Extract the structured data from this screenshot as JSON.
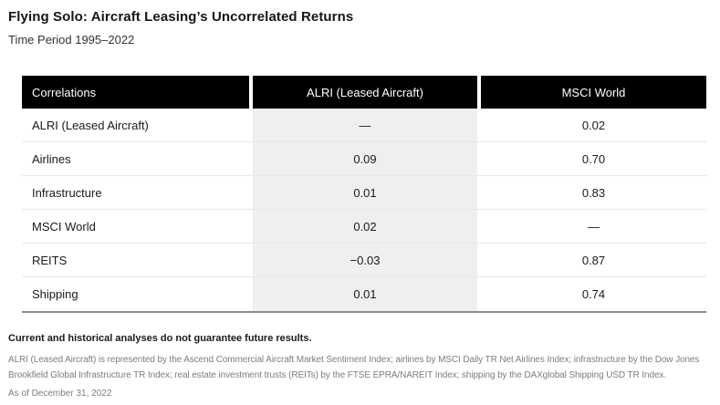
{
  "header": {
    "title": "Flying Solo: Aircraft Leasing’s Uncorrelated Returns",
    "subtitle": "Time Period 1995–2022"
  },
  "table": {
    "columns": [
      "Correlations",
      "ALRI (Leased Aircraft)",
      "MSCI World"
    ],
    "rows": [
      {
        "label": "ALRI (Leased Aircraft)",
        "values": [
          "—",
          "0.02"
        ]
      },
      {
        "label": "Airlines",
        "values": [
          "0.09",
          "0.70"
        ]
      },
      {
        "label": "Infrastructure",
        "values": [
          "0.01",
          "0.83"
        ]
      },
      {
        "label": "MSCI World",
        "values": [
          "0.02",
          "—"
        ]
      },
      {
        "label": "REITS",
        "values": [
          "−0.03",
          "0.87"
        ]
      },
      {
        "label": "Shipping",
        "values": [
          "0.01",
          "0.74"
        ]
      }
    ]
  },
  "footnotes": {
    "disclaimer": "Current and historical analyses do not guarantee future results.",
    "sources": "ALRI (Leased Aircraft) is represented by the Ascend Commercial Aircraft Market Sentiment Index; airlines by MSCI Daily TR Net Airlines Index; infrastructure by the Dow Jones Brookfield Global Infrastructure TR Index; real estate investment trusts (REITs) by the FTSE EPRA/NAREIT Index; shipping by the DAXglobal Shipping USD TR Index.",
    "as_of": "As of December 31, 2022"
  },
  "colors": {
    "header_bg": "#000000",
    "header_text": "#ffffff",
    "highlight_column_bg": "#efefef",
    "row_divider": "#e8e8e8",
    "table_bottom_border": "#8c8c8c",
    "footnote_text": "#7d7d7d"
  },
  "chart_data": {
    "type": "table",
    "title": "Flying Solo: Aircraft Leasing’s Uncorrelated Returns",
    "subtitle": "Time Period 1995–2022",
    "columns": [
      "Correlations",
      "ALRI (Leased Aircraft)",
      "MSCI World"
    ],
    "rows": [
      [
        "ALRI (Leased Aircraft)",
        null,
        0.02
      ],
      [
        "Airlines",
        0.09,
        0.7
      ],
      [
        "Infrastructure",
        0.01,
        0.83
      ],
      [
        "MSCI World",
        0.02,
        null
      ],
      [
        "REITS",
        -0.03,
        0.87
      ],
      [
        "Shipping",
        0.01,
        0.74
      ]
    ],
    "notes": [
      "Current and historical analyses do not guarantee future results.",
      "ALRI (Leased Aircraft) is represented by the Ascend Commercial Aircraft Market Sentiment Index; airlines by MSCI Daily TR Net Airlines Index; infrastructure by the Dow Jones Brookfield Global Infrastructure TR Index; real estate investment trusts (REITs) by the FTSE EPRA/NAREIT Index; shipping by the DAXglobal Shipping USD TR Index.",
      "As of December 31, 2022"
    ]
  }
}
